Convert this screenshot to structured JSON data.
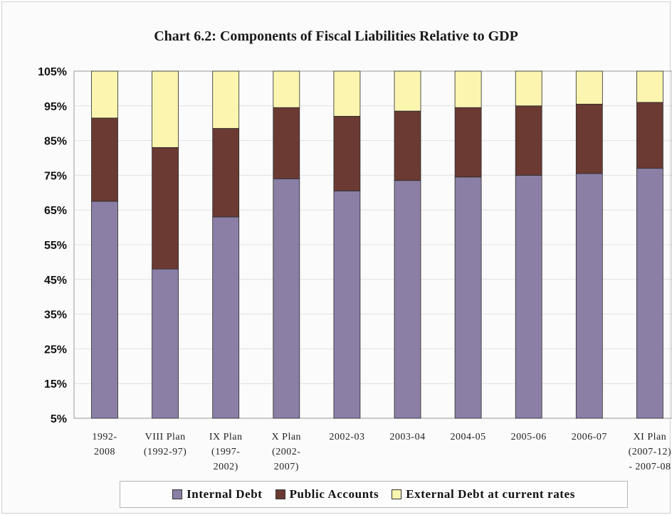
{
  "chart_data": {
    "type": "bar",
    "stacked": true,
    "percent_stacked": true,
    "title": "Chart 6.2: Components of Fiscal Liabilities Relative to GDP",
    "xlabel": "",
    "ylabel": "",
    "ylim": [
      5,
      105
    ],
    "yticks": [
      "105%",
      "95%",
      "85%",
      "75%",
      "65%",
      "55%",
      "45%",
      "35%",
      "25%",
      "15%",
      "5%"
    ],
    "ytick_values": [
      105,
      95,
      85,
      75,
      65,
      55,
      45,
      35,
      25,
      15,
      5
    ],
    "grid": true,
    "legend_position": "bottom",
    "categories": [
      [
        "1992-",
        "2008"
      ],
      [
        "VIII Plan",
        "(1992-97)"
      ],
      [
        "IX Plan",
        "(1997-",
        "2002)"
      ],
      [
        "X Plan",
        "(2002-",
        "2007)"
      ],
      [
        "2002-03"
      ],
      [
        "2003-04"
      ],
      [
        "2004-05"
      ],
      [
        "2005-06"
      ],
      [
        "2006-07"
      ],
      [
        "XI Plan",
        "(2007-12)",
        "- 2007-08"
      ]
    ],
    "series": [
      {
        "name": "Internal Debt",
        "color": "#8b7fa6",
        "values": [
          62.5,
          43,
          58,
          69,
          65.5,
          68.5,
          69.5,
          70,
          70.5,
          72
        ]
      },
      {
        "name": "Public Accounts",
        "color": "#6b3a33",
        "values": [
          24,
          35,
          25.5,
          20.5,
          21.5,
          20,
          20,
          20,
          20,
          19
        ]
      },
      {
        "name": "External Debt at current rates",
        "color": "#fbf5b0",
        "values": [
          13.5,
          22,
          16.5,
          10.5,
          13,
          11.5,
          10.5,
          10,
          9.5,
          9
        ]
      }
    ]
  }
}
